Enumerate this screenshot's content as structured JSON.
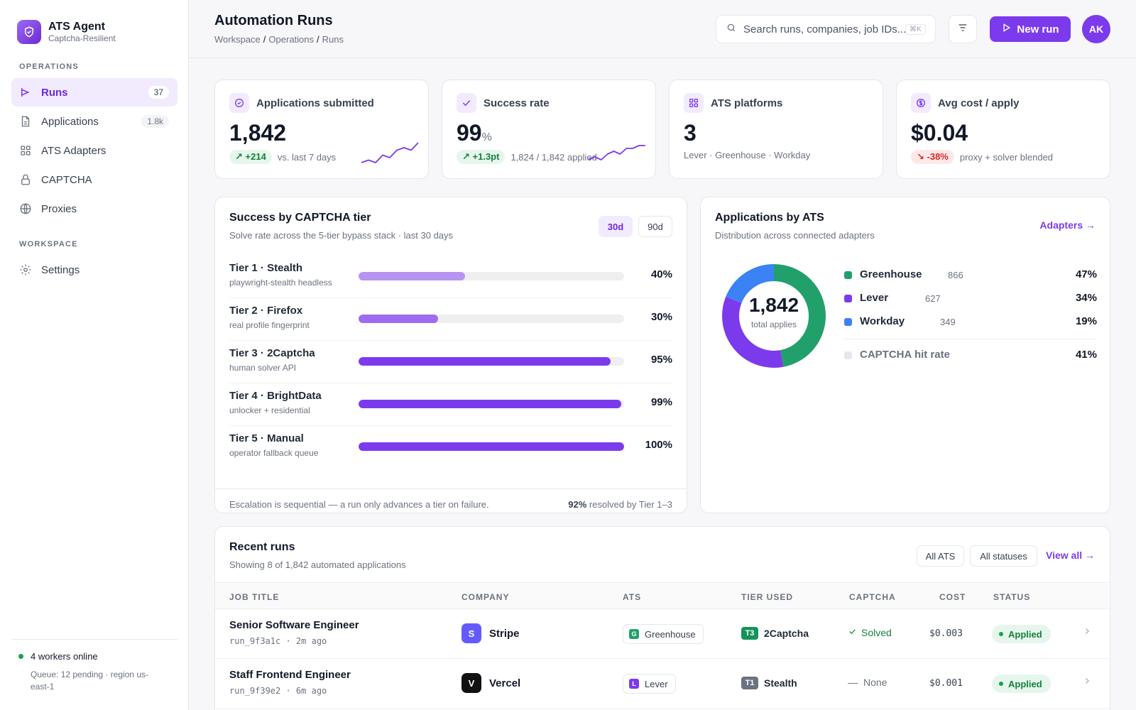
{
  "brand": {
    "title": "ATS Agent",
    "subtitle": "Captcha-Resilient"
  },
  "sidebar": {
    "section_operations": "OPERATIONS",
    "section_workspace": "WORKSPACE",
    "items": [
      {
        "label": "Runs",
        "badge": "37",
        "icon": "runs-icon",
        "active": true
      },
      {
        "label": "Applications",
        "badge": "1.8k",
        "icon": "document-icon"
      },
      {
        "label": "ATS Adapters",
        "icon": "grid-icon"
      },
      {
        "label": "CAPTCHA",
        "icon": "lock-icon"
      },
      {
        "label": "Proxies",
        "icon": "globe-icon"
      },
      {
        "label": "Settings",
        "icon": "gear-icon"
      }
    ],
    "footer": {
      "status": "4 workers online",
      "queue": "Queue: 12 pending · region us-east-1"
    }
  },
  "header": {
    "title": "Automation Runs",
    "breadcrumb": [
      "Workspace",
      "Operations",
      "Runs"
    ],
    "search_placeholder": "Search runs, companies, job IDs...",
    "search_shortcut": "⌘K",
    "new_run_label": "New run",
    "avatar_initials": "AK"
  },
  "kpis": [
    {
      "label": "Applications submitted",
      "value": "1,842",
      "unit": "",
      "delta": "+214",
      "delta_dir": "up",
      "note": "vs. last 7 days",
      "icon": "check-circle-icon"
    },
    {
      "label": "Success rate",
      "value": "99",
      "unit": "%",
      "delta": "+1.3pt",
      "delta_dir": "up",
      "note": "1,824 / 1,842 applied",
      "icon": "check-icon"
    },
    {
      "label": "ATS platforms",
      "value": "3",
      "unit": "",
      "note": "Lever · Greenhouse · Workday",
      "icon": "grid-icon"
    },
    {
      "label": "Avg cost / apply",
      "value": "$0.04",
      "unit": "",
      "delta": "-38%",
      "delta_dir": "down",
      "note": "proxy + solver blended",
      "icon": "dollar-icon"
    }
  ],
  "captcha_tiers": {
    "title": "Success by CAPTCHA tier",
    "subtitle": "Solve rate across the 5-tier bypass stack · last 30 days",
    "ranges": [
      "30d",
      "90d"
    ],
    "active_range": "30d",
    "tiers": [
      {
        "name": "Tier 1 · Stealth",
        "desc": "playwright-stealth headless",
        "pct": 40,
        "label": "40%",
        "color": "#b794f0"
      },
      {
        "name": "Tier 2 · Firefox",
        "desc": "real profile fingerprint",
        "pct": 30,
        "label": "30%",
        "color": "#9d6cf0"
      },
      {
        "name": "Tier 3 · 2Captcha",
        "desc": "human solver API",
        "pct": 95,
        "label": "95%",
        "color": "#7c3aed"
      },
      {
        "name": "Tier 4 · BrightData",
        "desc": "unlocker + residential",
        "pct": 99,
        "label": "99%",
        "color": "#7c3aed"
      },
      {
        "name": "Tier 5 · Manual",
        "desc": "operator fallback queue",
        "pct": 100,
        "label": "100%",
        "color": "#7c3aed"
      }
    ],
    "footer_note": "Escalation is sequential — a run only advances a tier on failure.",
    "footer_stat_value": "92%",
    "footer_stat_text": "resolved by Tier 1–3"
  },
  "ats_breakdown": {
    "title": "Applications by ATS",
    "subtitle": "Distribution across connected adapters",
    "link_label": "Adapters →",
    "center_value": "1,842",
    "center_label": "total applies",
    "items": [
      {
        "name": "Greenhouse",
        "count": "866",
        "pct": "47%",
        "color": "#22a06b"
      },
      {
        "name": "Lever",
        "count": "627",
        "pct": "34%",
        "color": "#7c3aed"
      },
      {
        "name": "Workday",
        "count": "349",
        "pct": "19%",
        "color": "#3b82f6"
      }
    ],
    "captcha_hit": {
      "name": "CAPTCHA hit rate",
      "pct": "41%",
      "color": "#e5e7eb"
    }
  },
  "recent_runs": {
    "title": "Recent runs",
    "subtitle": "Showing 8 of 1,842 automated applications",
    "filter_ats": "All ATS",
    "filter_status": "All statuses",
    "view_all": "View all →",
    "columns": [
      "JOB TITLE",
      "COMPANY",
      "ATS",
      "TIER USED",
      "CAPTCHA",
      "COST",
      "STATUS"
    ],
    "rows": [
      {
        "job": "Senior Software Engineer",
        "run_id": "run_9f3a1c · 2m ago",
        "company": "Stripe",
        "company_initial": "S",
        "company_color": "#635bff",
        "ats": "Greenhouse",
        "ats_initial": "G",
        "ats_color": "#22a06b",
        "tier_badge": "T3",
        "tier_name": "2Captcha",
        "tier_color": "#15935a",
        "captcha": "Solved",
        "captcha_state": "solved",
        "cost": "$0.003",
        "status": "Applied"
      },
      {
        "job": "Staff Frontend Engineer",
        "run_id": "run_9f39e2 · 6m ago",
        "company": "Vercel",
        "company_initial": "V",
        "company_color": "#111111",
        "ats": "Lever",
        "ats_initial": "L",
        "ats_color": "#7c3aed",
        "tier_badge": "T1",
        "tier_name": "Stealth",
        "tier_color": "#6b7280",
        "captcha": "None",
        "captcha_state": "none",
        "cost": "$0.001",
        "status": "Applied"
      }
    ]
  },
  "chart_data": [
    {
      "type": "bar",
      "title": "Success by CAPTCHA tier",
      "categories": [
        "Tier 1 · Stealth",
        "Tier 2 · Firefox",
        "Tier 3 · 2Captcha",
        "Tier 4 · BrightData",
        "Tier 5 · Manual"
      ],
      "values": [
        40,
        30,
        95,
        99,
        100
      ],
      "ylim": [
        0,
        100
      ]
    },
    {
      "type": "pie",
      "title": "Applications by ATS",
      "categories": [
        "Greenhouse",
        "Lever",
        "Workday"
      ],
      "values": [
        866,
        627,
        349
      ],
      "percent": [
        47,
        34,
        19
      ]
    },
    {
      "type": "line",
      "series": [
        {
          "values": [
            2,
            3,
            2,
            5,
            4,
            7,
            8,
            7,
            10
          ]
        }
      ]
    },
    {
      "type": "line",
      "series": [
        {
          "values": [
            3,
            4,
            3,
            5,
            6,
            5,
            7,
            7,
            8,
            8
          ]
        }
      ]
    }
  ]
}
